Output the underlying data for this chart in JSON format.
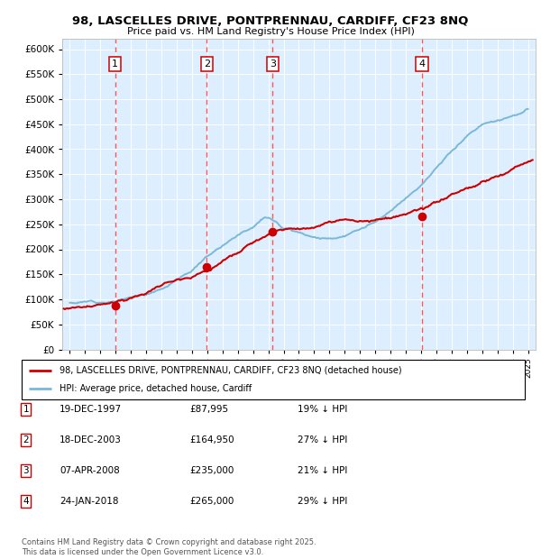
{
  "title_line1": "98, LASCELLES DRIVE, PONTPRENNAU, CARDIFF, CF23 8NQ",
  "title_line2": "Price paid vs. HM Land Registry's House Price Index (HPI)",
  "legend_label1": "98, LASCELLES DRIVE, PONTPRENNAU, CARDIFF, CF23 8NQ (detached house)",
  "legend_label2": "HPI: Average price, detached house, Cardiff",
  "footer": "Contains HM Land Registry data © Crown copyright and database right 2025.\nThis data is licensed under the Open Government Licence v3.0.",
  "transactions": [
    {
      "num": 1,
      "date": "19-DEC-1997",
      "price": "£87,995",
      "pct": "19% ↓ HPI",
      "x_year": 1997.97
    },
    {
      "num": 2,
      "date": "18-DEC-2003",
      "price": "£164,950",
      "pct": "27% ↓ HPI",
      "x_year": 2003.97
    },
    {
      "num": 3,
      "date": "07-APR-2008",
      "price": "£235,000",
      "pct": "21% ↓ HPI",
      "x_year": 2008.27
    },
    {
      "num": 4,
      "date": "24-JAN-2018",
      "price": "£265,000",
      "pct": "29% ↓ HPI",
      "x_year": 2018.07
    }
  ],
  "hpi_color": "#7ab8d9",
  "price_color": "#cc0000",
  "vline_color": "#ff5555",
  "bg_color": "#ddeeff",
  "ylim": [
    0,
    620000
  ],
  "yticks": [
    0,
    50000,
    100000,
    150000,
    200000,
    250000,
    300000,
    350000,
    400000,
    450000,
    500000,
    550000,
    600000
  ],
  "xlim": [
    1994.5,
    2025.5
  ],
  "xticks": [
    1995,
    1996,
    1997,
    1998,
    1999,
    2000,
    2001,
    2002,
    2003,
    2004,
    2005,
    2006,
    2007,
    2008,
    2009,
    2010,
    2011,
    2012,
    2013,
    2014,
    2015,
    2016,
    2017,
    2018,
    2019,
    2020,
    2021,
    2022,
    2023,
    2024,
    2025
  ],
  "hpi_knots_x": [
    1995,
    1996,
    1997,
    1998,
    1999,
    2000,
    2001,
    2002,
    2003,
    2004,
    2005,
    2006,
    2007,
    2007.5,
    2008,
    2008.5,
    2009,
    2010,
    2011,
    2012,
    2013,
    2014,
    2015,
    2016,
    2017,
    2018,
    2019,
    2020,
    2021,
    2022,
    2023,
    2024,
    2025
  ],
  "hpi_knots_y": [
    93000,
    95000,
    98000,
    102000,
    108000,
    115000,
    130000,
    148000,
    168000,
    196000,
    220000,
    245000,
    265000,
    280000,
    285000,
    278000,
    265000,
    258000,
    252000,
    248000,
    255000,
    265000,
    278000,
    295000,
    320000,
    350000,
    385000,
    415000,
    448000,
    470000,
    480000,
    490000,
    500000
  ],
  "price_knots_x": [
    1994.6,
    1997.97,
    2003.97,
    2008.27,
    2018.07,
    2025.3
  ],
  "price_knots_y": [
    82000,
    87995,
    164950,
    235000,
    265000,
    350000
  ]
}
